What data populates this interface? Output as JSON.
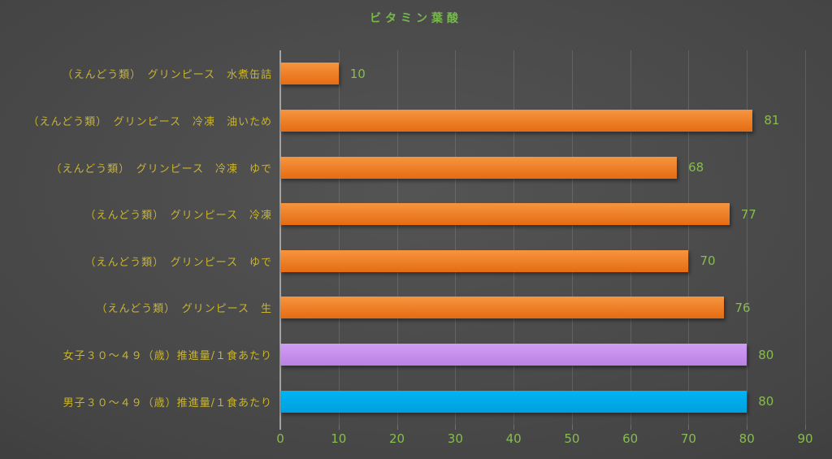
{
  "title": "ビタミン葉酸",
  "colors": {
    "title_green": "#77b84d",
    "value_green": "#87bc4e",
    "axis_label_green": "#87bc4e",
    "category_yellow": "#c9b42e",
    "gridline_gray": "#5c5c5c",
    "axis_line_gray": "#a2a2a2",
    "bar_palette": {
      "orange": {
        "top": "#f6953f",
        "bottom": "#e56c12"
      },
      "purple": {
        "top": "#d09ef4",
        "bottom": "#bc80e4"
      },
      "blue": {
        "top": "#00b4f4",
        "bottom": "#009fdd"
      }
    }
  },
  "chart_data": {
    "type": "bar",
    "orientation": "horizontal",
    "title": "ビタミン葉酸",
    "categories": [
      "（えんどう類）　グリンピース　水煮缶詰",
      "（えんどう類）　グリンピース　冷凍　油いため",
      "（えんどう類）　グリンピース　冷凍　ゆで",
      "（えんどう類）　グリンピース　冷凍",
      "（えんどう類）　グリンピース　ゆで",
      "（えんどう類）　グリンピース　生",
      "女子３０～４９（歳）推進量/１食あたり",
      "男子３０～４９（歳）推進量/１食あたり"
    ],
    "values": [
      10,
      81,
      68,
      77,
      70,
      76,
      80,
      80
    ],
    "bar_colors": [
      "orange",
      "orange",
      "orange",
      "orange",
      "orange",
      "orange",
      "purple",
      "blue"
    ],
    "xlabel": "",
    "ylabel": "",
    "xlim": [
      0,
      90
    ],
    "x_ticks": [
      0,
      10,
      20,
      30,
      40,
      50,
      60,
      70,
      80,
      90
    ],
    "grid": true,
    "legend": "none",
    "data_labels": true
  }
}
